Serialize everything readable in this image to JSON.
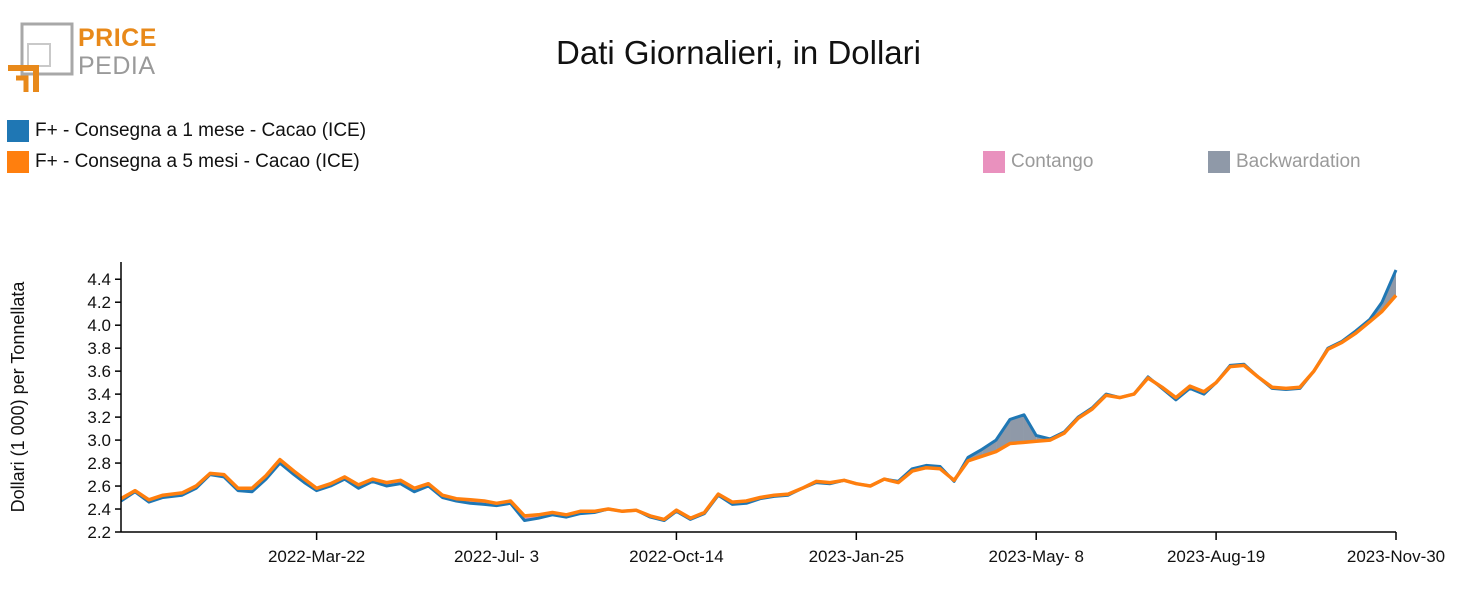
{
  "brand": {
    "line1": "PRICE",
    "line2": "PEDIA",
    "color_accent": "#e8891a",
    "color_gray": "#9a9a9a"
  },
  "chart_data": {
    "type": "line",
    "title": "Dati Giornalieri, in Dollari",
    "ylabel": "Dollari (1 000) per Tonnellata",
    "xlabel": "",
    "ylim": [
      2.2,
      4.55
    ],
    "xlim": [
      "2021-11-30",
      "2023-11-30"
    ],
    "yticks": [
      2.2,
      2.4,
      2.6,
      2.8,
      3.0,
      3.2,
      3.4,
      3.6,
      3.8,
      4.0,
      4.2,
      4.4
    ],
    "ytick_labels": [
      "2.2",
      "2.4",
      "2.6",
      "2.8",
      "3.0",
      "3.2",
      "3.4",
      "3.6",
      "3.8",
      "4.0",
      "4.2",
      "4.4"
    ],
    "xticks": [
      {
        "date": "2022-03-22",
        "label": "2022-Mar-22"
      },
      {
        "date": "2022-07-03",
        "label": "2022-Jul- 3"
      },
      {
        "date": "2022-10-14",
        "label": "2022-Oct-14"
      },
      {
        "date": "2023-01-25",
        "label": "2023-Jan-25"
      },
      {
        "date": "2023-05-08",
        "label": "2023-May- 8"
      },
      {
        "date": "2023-08-19",
        "label": "2023-Aug-19"
      },
      {
        "date": "2023-11-30",
        "label": "2023-Nov-30"
      }
    ],
    "grid": false,
    "legend_position": "top-left",
    "series": [
      {
        "name": "F+ - Consegna a 1 mese - Cacao (ICE)",
        "color": "#1f77b4",
        "points": [
          [
            "2021-11-30",
            2.47
          ],
          [
            "2021-12-08",
            2.55
          ],
          [
            "2021-12-16",
            2.46
          ],
          [
            "2021-12-24",
            2.5
          ],
          [
            "2022-01-04",
            2.52
          ],
          [
            "2022-01-12",
            2.58
          ],
          [
            "2022-01-20",
            2.7
          ],
          [
            "2022-01-28",
            2.68
          ],
          [
            "2022-02-05",
            2.56
          ],
          [
            "2022-02-13",
            2.55
          ],
          [
            "2022-02-21",
            2.66
          ],
          [
            "2022-03-01",
            2.8
          ],
          [
            "2022-03-09",
            2.7
          ],
          [
            "2022-03-15",
            2.63
          ],
          [
            "2022-03-22",
            2.56
          ],
          [
            "2022-03-30",
            2.6
          ],
          [
            "2022-04-07",
            2.66
          ],
          [
            "2022-04-15",
            2.58
          ],
          [
            "2022-04-23",
            2.64
          ],
          [
            "2022-05-01",
            2.6
          ],
          [
            "2022-05-09",
            2.62
          ],
          [
            "2022-05-17",
            2.55
          ],
          [
            "2022-05-25",
            2.6
          ],
          [
            "2022-06-02",
            2.5
          ],
          [
            "2022-06-10",
            2.47
          ],
          [
            "2022-06-18",
            2.45
          ],
          [
            "2022-06-26",
            2.44
          ],
          [
            "2022-07-03",
            2.43
          ],
          [
            "2022-07-11",
            2.45
          ],
          [
            "2022-07-19",
            2.3
          ],
          [
            "2022-07-27",
            2.32
          ],
          [
            "2022-08-04",
            2.35
          ],
          [
            "2022-08-12",
            2.33
          ],
          [
            "2022-08-20",
            2.36
          ],
          [
            "2022-08-28",
            2.37
          ],
          [
            "2022-09-05",
            2.4
          ],
          [
            "2022-09-13",
            2.38
          ],
          [
            "2022-09-21",
            2.39
          ],
          [
            "2022-09-29",
            2.33
          ],
          [
            "2022-10-07",
            2.3
          ],
          [
            "2022-10-14",
            2.38
          ],
          [
            "2022-10-22",
            2.31
          ],
          [
            "2022-10-30",
            2.36
          ],
          [
            "2022-11-07",
            2.52
          ],
          [
            "2022-11-15",
            2.44
          ],
          [
            "2022-11-23",
            2.45
          ],
          [
            "2022-12-01",
            2.49
          ],
          [
            "2022-12-09",
            2.51
          ],
          [
            "2022-12-17",
            2.52
          ],
          [
            "2022-12-25",
            2.58
          ],
          [
            "2023-01-02",
            2.63
          ],
          [
            "2023-01-10",
            2.62
          ],
          [
            "2023-01-18",
            2.65
          ],
          [
            "2023-01-25",
            2.62
          ],
          [
            "2023-02-02",
            2.6
          ],
          [
            "2023-02-10",
            2.66
          ],
          [
            "2023-02-18",
            2.64
          ],
          [
            "2023-02-26",
            2.75
          ],
          [
            "2023-03-06",
            2.78
          ],
          [
            "2023-03-14",
            2.77
          ],
          [
            "2023-03-22",
            2.64
          ],
          [
            "2023-03-30",
            2.85
          ],
          [
            "2023-04-07",
            2.92
          ],
          [
            "2023-04-15",
            3.0
          ],
          [
            "2023-04-23",
            3.18
          ],
          [
            "2023-05-01",
            3.22
          ],
          [
            "2023-05-08",
            3.04
          ],
          [
            "2023-05-16",
            3.01
          ],
          [
            "2023-05-24",
            3.07
          ],
          [
            "2023-06-01",
            3.2
          ],
          [
            "2023-06-09",
            3.28
          ],
          [
            "2023-06-17",
            3.4
          ],
          [
            "2023-06-25",
            3.37
          ],
          [
            "2023-07-03",
            3.4
          ],
          [
            "2023-07-11",
            3.55
          ],
          [
            "2023-07-19",
            3.45
          ],
          [
            "2023-07-27",
            3.35
          ],
          [
            "2023-08-04",
            3.45
          ],
          [
            "2023-08-12",
            3.4
          ],
          [
            "2023-08-19",
            3.5
          ],
          [
            "2023-08-27",
            3.65
          ],
          [
            "2023-09-04",
            3.66
          ],
          [
            "2023-09-12",
            3.55
          ],
          [
            "2023-09-20",
            3.45
          ],
          [
            "2023-09-28",
            3.44
          ],
          [
            "2023-10-06",
            3.45
          ],
          [
            "2023-10-14",
            3.6
          ],
          [
            "2023-10-22",
            3.8
          ],
          [
            "2023-10-30",
            3.86
          ],
          [
            "2023-11-07",
            3.95
          ],
          [
            "2023-11-15",
            4.05
          ],
          [
            "2023-11-22",
            4.2
          ],
          [
            "2023-11-30",
            4.48
          ]
        ]
      },
      {
        "name": "F+ - Consegna a 5 mesi - Cacao (ICE)",
        "color": "#ff7f0e",
        "points": [
          [
            "2021-11-30",
            2.49
          ],
          [
            "2021-12-08",
            2.56
          ],
          [
            "2021-12-16",
            2.48
          ],
          [
            "2021-12-24",
            2.52
          ],
          [
            "2022-01-04",
            2.54
          ],
          [
            "2022-01-12",
            2.6
          ],
          [
            "2022-01-20",
            2.71
          ],
          [
            "2022-01-28",
            2.7
          ],
          [
            "2022-02-05",
            2.58
          ],
          [
            "2022-02-13",
            2.58
          ],
          [
            "2022-02-21",
            2.69
          ],
          [
            "2022-03-01",
            2.83
          ],
          [
            "2022-03-09",
            2.73
          ],
          [
            "2022-03-15",
            2.66
          ],
          [
            "2022-03-22",
            2.58
          ],
          [
            "2022-03-30",
            2.62
          ],
          [
            "2022-04-07",
            2.68
          ],
          [
            "2022-04-15",
            2.61
          ],
          [
            "2022-04-23",
            2.66
          ],
          [
            "2022-05-01",
            2.63
          ],
          [
            "2022-05-09",
            2.65
          ],
          [
            "2022-05-17",
            2.58
          ],
          [
            "2022-05-25",
            2.62
          ],
          [
            "2022-06-02",
            2.52
          ],
          [
            "2022-06-10",
            2.49
          ],
          [
            "2022-06-18",
            2.48
          ],
          [
            "2022-06-26",
            2.47
          ],
          [
            "2022-07-03",
            2.45
          ],
          [
            "2022-07-11",
            2.47
          ],
          [
            "2022-07-19",
            2.34
          ],
          [
            "2022-07-27",
            2.35
          ],
          [
            "2022-08-04",
            2.37
          ],
          [
            "2022-08-12",
            2.35
          ],
          [
            "2022-08-20",
            2.38
          ],
          [
            "2022-08-28",
            2.38
          ],
          [
            "2022-09-05",
            2.4
          ],
          [
            "2022-09-13",
            2.38
          ],
          [
            "2022-09-21",
            2.39
          ],
          [
            "2022-09-29",
            2.34
          ],
          [
            "2022-10-07",
            2.31
          ],
          [
            "2022-10-14",
            2.39
          ],
          [
            "2022-10-22",
            2.32
          ],
          [
            "2022-10-30",
            2.37
          ],
          [
            "2022-11-07",
            2.53
          ],
          [
            "2022-11-15",
            2.46
          ],
          [
            "2022-11-23",
            2.47
          ],
          [
            "2022-12-01",
            2.5
          ],
          [
            "2022-12-09",
            2.52
          ],
          [
            "2022-12-17",
            2.53
          ],
          [
            "2022-12-25",
            2.58
          ],
          [
            "2023-01-02",
            2.64
          ],
          [
            "2023-01-10",
            2.63
          ],
          [
            "2023-01-18",
            2.65
          ],
          [
            "2023-01-25",
            2.62
          ],
          [
            "2023-02-02",
            2.6
          ],
          [
            "2023-02-10",
            2.66
          ],
          [
            "2023-02-18",
            2.63
          ],
          [
            "2023-02-26",
            2.73
          ],
          [
            "2023-03-06",
            2.76
          ],
          [
            "2023-03-14",
            2.75
          ],
          [
            "2023-03-22",
            2.65
          ],
          [
            "2023-03-30",
            2.82
          ],
          [
            "2023-04-07",
            2.86
          ],
          [
            "2023-04-15",
            2.9
          ],
          [
            "2023-04-23",
            2.97
          ],
          [
            "2023-05-01",
            2.98
          ],
          [
            "2023-05-08",
            2.99
          ],
          [
            "2023-05-16",
            3.0
          ],
          [
            "2023-05-24",
            3.06
          ],
          [
            "2023-06-01",
            3.19
          ],
          [
            "2023-06-09",
            3.27
          ],
          [
            "2023-06-17",
            3.39
          ],
          [
            "2023-06-25",
            3.37
          ],
          [
            "2023-07-03",
            3.4
          ],
          [
            "2023-07-11",
            3.54
          ],
          [
            "2023-07-19",
            3.46
          ],
          [
            "2023-07-27",
            3.37
          ],
          [
            "2023-08-04",
            3.47
          ],
          [
            "2023-08-12",
            3.42
          ],
          [
            "2023-08-19",
            3.5
          ],
          [
            "2023-08-27",
            3.64
          ],
          [
            "2023-09-04",
            3.65
          ],
          [
            "2023-09-12",
            3.55
          ],
          [
            "2023-09-20",
            3.46
          ],
          [
            "2023-09-28",
            3.45
          ],
          [
            "2023-10-06",
            3.46
          ],
          [
            "2023-10-14",
            3.6
          ],
          [
            "2023-10-22",
            3.79
          ],
          [
            "2023-10-30",
            3.85
          ],
          [
            "2023-11-07",
            3.93
          ],
          [
            "2023-11-15",
            4.03
          ],
          [
            "2023-11-22",
            4.12
          ],
          [
            "2023-11-30",
            4.26
          ]
        ]
      }
    ],
    "fill_legend": [
      {
        "name": "Contango",
        "color": "#e991be"
      },
      {
        "name": "Backwardation",
        "color": "#8f99a8"
      }
    ]
  }
}
